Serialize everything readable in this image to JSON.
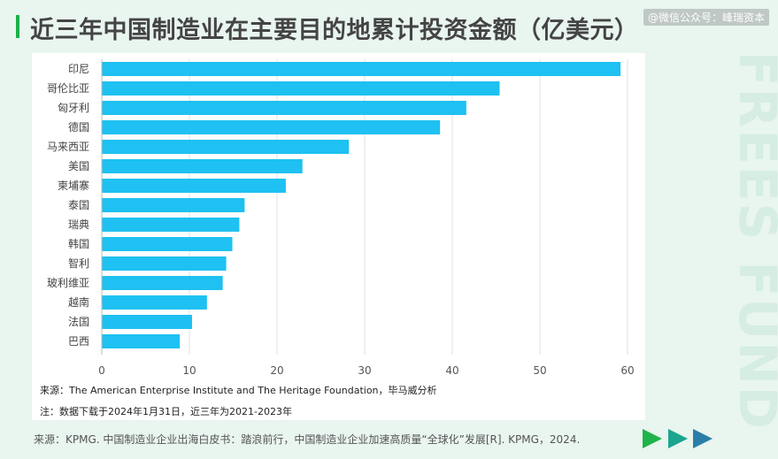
{
  "header": {
    "title": "近三年中国制造业在主要目的地累计投资金额（亿美元）",
    "wechat": "@微信公众号：峰瑞资本"
  },
  "watermark": "FREES FUND",
  "notes": {
    "source_label": "来源：The American Enterprise Institute and The Heritage Foundation，毕马威分析",
    "note_label": "注：数据下载于2024年1月31日，近三年为2021-2023年"
  },
  "footer": {
    "source": "来源：KPMG. 中国制造业企业出海白皮书：踏浪前行，中国制造业企业加速高质量“全球化”发展[R]. KPMG，2024."
  },
  "colors": {
    "bar": "#1ec1f1",
    "accent": "#1db04a",
    "arrow1": "#1fb44a",
    "arrow2": "#1aa58e",
    "arrow3": "#2a7fa8"
  },
  "chart_data": {
    "type": "bar",
    "orientation": "horizontal",
    "categories": [
      "印尼",
      "哥伦比亚",
      "匈牙利",
      "德国",
      "马来西亚",
      "美国",
      "柬埔寨",
      "泰国",
      "瑞典",
      "韩国",
      "智利",
      "玻利维亚",
      "越南",
      "法国",
      "巴西"
    ],
    "values": [
      59.2,
      45.4,
      41.6,
      38.6,
      28.2,
      22.9,
      21.0,
      16.3,
      15.7,
      14.9,
      14.2,
      13.8,
      12.0,
      10.3,
      8.9
    ],
    "xlim": [
      0,
      60
    ],
    "xticks": [
      0,
      10,
      20,
      30,
      40,
      50,
      60
    ],
    "grid": true
  }
}
